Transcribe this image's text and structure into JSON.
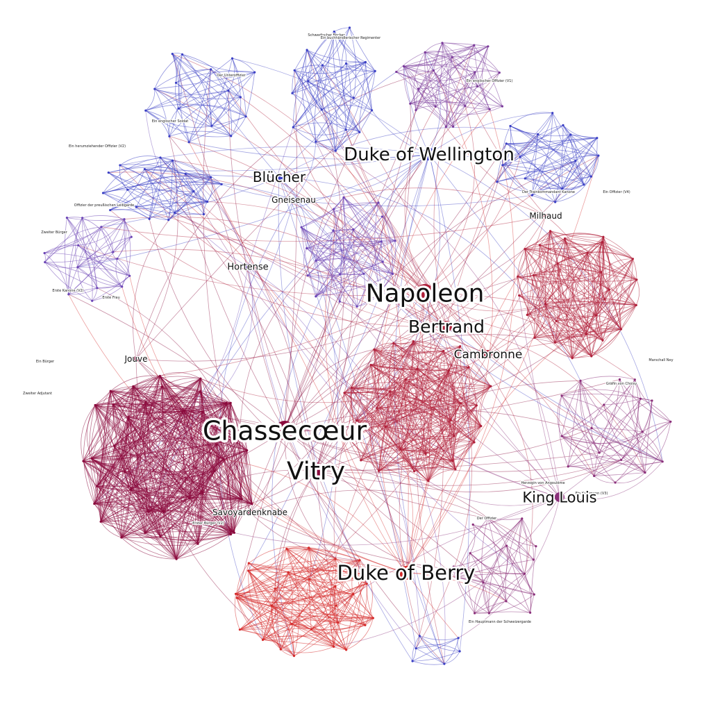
{
  "graph": {
    "colors": {
      "blue": "#3a3fc4",
      "purple": "#7a3a9a",
      "violet": "#6b44b5",
      "crimson": "#b0203a",
      "red": "#d52a2a",
      "wine": "#8a0a3c",
      "plum": "#8a2f7a"
    },
    "clusters": [
      {
        "id": "blue-top-left",
        "color": "blue"
      },
      {
        "id": "blue-top",
        "color": "blue"
      },
      {
        "id": "purple-top",
        "color": "purple"
      },
      {
        "id": "blue-right",
        "color": "blue"
      },
      {
        "id": "blue-left",
        "color": "blue"
      },
      {
        "id": "violet-left",
        "color": "violet"
      },
      {
        "id": "violet-center",
        "color": "violet"
      },
      {
        "id": "red-right",
        "color": "crimson"
      },
      {
        "id": "crimson-center",
        "color": "crimson"
      },
      {
        "id": "wine-left",
        "color": "wine"
      },
      {
        "id": "red-bottom",
        "color": "red"
      },
      {
        "id": "plum-right",
        "color": "plum"
      },
      {
        "id": "plum-bottom-right",
        "color": "plum"
      },
      {
        "id": "blue-bottom",
        "color": "blue"
      }
    ],
    "major_labels": [
      {
        "text": "Duke of Wellington",
        "color": "blue"
      },
      {
        "text": "Blücher",
        "color": "blue"
      },
      {
        "text": "Gneisenau",
        "color": "blue"
      },
      {
        "text": "Hortense",
        "color": "violet"
      },
      {
        "text": "Napoleon",
        "color": "crimson"
      },
      {
        "text": "Bertrand",
        "color": "crimson"
      },
      {
        "text": "Cambronne",
        "color": "crimson"
      },
      {
        "text": "Milhaud",
        "color": "crimson"
      },
      {
        "text": "Jouve",
        "color": "wine"
      },
      {
        "text": "Chassecœur",
        "color": "wine"
      },
      {
        "text": "Vitry",
        "color": "wine"
      },
      {
        "text": "Savoyardenknabe",
        "color": "wine"
      },
      {
        "text": "Duke of Berry",
        "color": "red"
      },
      {
        "text": "King Louis",
        "color": "plum"
      }
    ],
    "minor_labels": [
      "Schwedischer Becker",
      "Ein buchhändlerischer Regimenter",
      "Der Unteroffizier",
      "Ein englischer Soldat",
      "Ein herumziehender Offizier (V2)",
      "Ein englischer Offizier (V1)",
      "Der Trainkommandant Kanone",
      "Offizier der preußischen Leibgarde",
      "Zweiter Bürger",
      "Erste Kanone (V2)",
      "Ein Offizier (V4)",
      "Ein Kaufmann (V3)",
      "Der Offizier",
      "Ein Hauptmann der Schweizergarde",
      "Herzogin von Angoulême",
      "Marschall Ney",
      "Gräfin von Choisy",
      "Erster Bürger (V2)",
      "Zweiter Adjutant",
      "Ein Bürger",
      "Erste Frau"
    ]
  }
}
